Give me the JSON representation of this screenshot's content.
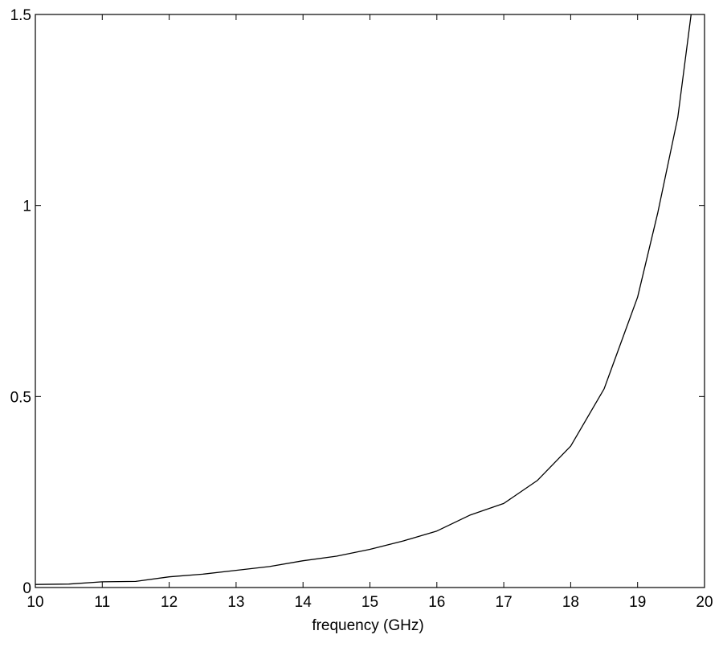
{
  "chart_data": {
    "type": "line",
    "title": "",
    "xlabel": "frequency (GHz)",
    "ylabel": "",
    "xlim": [
      10,
      20
    ],
    "ylim": [
      0,
      1.5
    ],
    "x_ticks": [
      10,
      11,
      12,
      13,
      14,
      15,
      16,
      17,
      18,
      19,
      20
    ],
    "y_ticks": [
      0,
      0.5,
      1,
      1.5
    ],
    "x_tick_labels": [
      "10",
      "11",
      "12",
      "13",
      "14",
      "15",
      "16",
      "17",
      "18",
      "19",
      "20"
    ],
    "y_tick_labels": [
      "0",
      "0.5",
      "1",
      "1.5"
    ],
    "grid": false,
    "line_color": "#000000",
    "series": [
      {
        "x": [
          10.0,
          10.5,
          11.0,
          11.5,
          12.0,
          12.5,
          13.0,
          13.5,
          14.0,
          14.5,
          15.0,
          15.5,
          16.0,
          16.5,
          17.0,
          17.5,
          18.0,
          18.5,
          19.0,
          19.3,
          19.6,
          19.8
        ],
        "y": [
          0.008,
          0.009,
          0.015,
          0.016,
          0.028,
          0.035,
          0.045,
          0.055,
          0.07,
          0.082,
          0.1,
          0.122,
          0.148,
          0.19,
          0.22,
          0.28,
          0.37,
          0.52,
          0.76,
          0.98,
          1.23,
          1.5
        ]
      }
    ]
  }
}
